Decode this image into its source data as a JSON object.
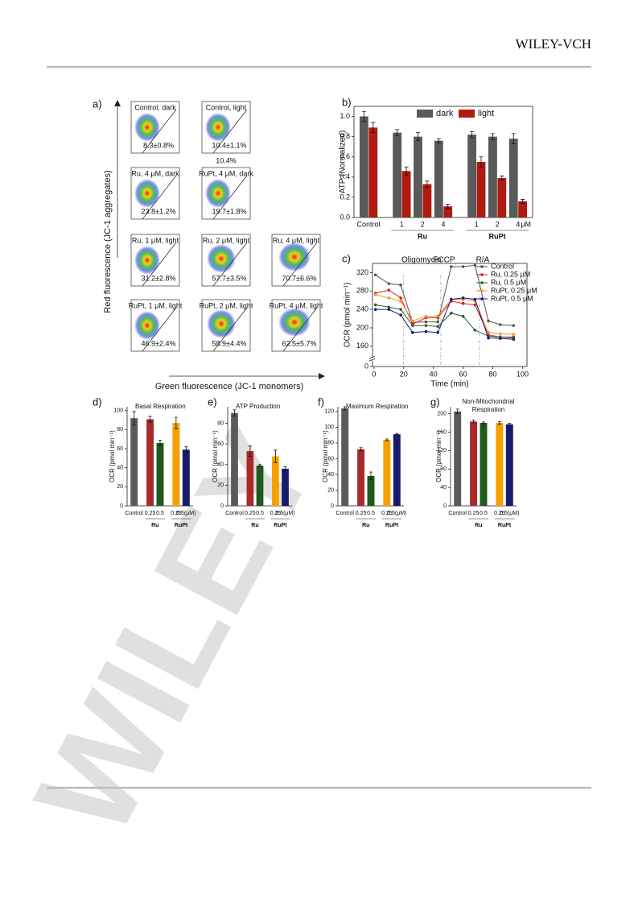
{
  "header": {
    "brand": "WILEY-VCH"
  },
  "watermark": "WILEY",
  "panel_a": {
    "label": "a)",
    "y_label": "Red fluorescence (JC-1 aggregates)",
    "x_label": "Green fluorescence (JC-1 monomers)",
    "plots": [
      {
        "title": "Control, dark",
        "gate": "8.3±0.8%"
      },
      {
        "title": "Control, light",
        "gate": "10.4±1.1%"
      },
      {
        "title": "Ru, 4 μM, dark",
        "gate": "23.8±1.2%"
      },
      {
        "title": "RuPt, 4 μM, dark",
        "gate": "19.7±1.8%"
      },
      {
        "title": "Ru, 1 μM, light",
        "gate": "31.2±2.8%"
      },
      {
        "title": "Ru, 2 μM, light",
        "gate": "57.7±3.5%"
      },
      {
        "title": "Ru, 4 μM, light",
        "gate": "70.7±6.6%"
      },
      {
        "title": "RuPt, 1 μM, light",
        "gate": "46.9±2.4%"
      },
      {
        "title": "RuPt, 2 μM, light",
        "gate": "58.9±4.4%"
      },
      {
        "title": "RuPt, 4 μM, light",
        "gate": "62.5±5.7%"
      }
    ],
    "extra": "10.4%"
  },
  "chart_data": [
    {
      "type": "bar",
      "panel": "b)",
      "y_label": "ATP (Normalized)",
      "frame": true,
      "legend": "top",
      "categories": [
        "Control",
        "1",
        "2",
        "4",
        "1",
        "2",
        "4"
      ],
      "groups": [
        "Ru",
        "RuPt"
      ],
      "unit": "μM",
      "series": [
        {
          "name": "dark",
          "color": "#5a5a5a",
          "values": [
            1.0,
            0.84,
            0.8,
            0.76,
            0.82,
            0.8,
            0.78
          ],
          "errors": [
            0.05,
            0.03,
            0.04,
            0.02,
            0.03,
            0.03,
            0.05
          ]
        },
        {
          "name": "light",
          "color": "#b01a10",
          "values": [
            0.89,
            0.46,
            0.33,
            0.11,
            0.55,
            0.39,
            0.16
          ],
          "errors": [
            0.05,
            0.04,
            0.03,
            0.02,
            0.05,
            0.02,
            0.02
          ]
        }
      ],
      "ylim": [
        0,
        1.1
      ],
      "yticks": [
        {
          "value": 0,
          "label": "0.0"
        },
        0.2,
        0.4,
        0.6,
        0.8,
        {
          "value": 1,
          "label": "1.0"
        }
      ]
    },
    {
      "type": "line",
      "panel": "c)",
      "y_label": "OCR (pmol min⁻¹)",
      "x_label": "Time (min)",
      "frame": true,
      "legend": "top-right",
      "x": [
        1,
        10,
        18,
        26,
        35,
        43,
        52,
        60,
        68,
        77,
        85,
        94
      ],
      "series": [
        {
          "name": "Control",
          "color": "#555555",
          "values": [
            315,
            296,
            293,
            212,
            213,
            213,
            333,
            333,
            336,
            215,
            207,
            205
          ]
        },
        {
          "name": "Ru, 0.25 μM",
          "color": "#d42020",
          "values": [
            275,
            282,
            265,
            208,
            222,
            222,
            258,
            253,
            250,
            185,
            180,
            180
          ]
        },
        {
          "name": "Ru, 0.5 μM",
          "color": "#2e5e2e",
          "values": [
            250,
            245,
            240,
            205,
            205,
            203,
            232,
            225,
            195,
            182,
            180,
            178
          ]
        },
        {
          "name": "RuPt, 0.25 μM",
          "color": "#f59a20",
          "values": [
            272,
            265,
            258,
            215,
            225,
            226,
            262,
            262,
            258,
            190,
            187,
            186
          ]
        },
        {
          "name": "RuPt, 0.5 μM",
          "color": "#1a1a7a",
          "values": [
            240,
            240,
            228,
            190,
            192,
            190,
            262,
            265,
            262,
            178,
            177,
            175
          ]
        }
      ],
      "annotations": [
        {
          "text": "Oligomycin",
          "x": 20
        },
        {
          "text": "FCCP",
          "x": 45
        },
        {
          "text": "R/A",
          "x": 71
        }
      ],
      "xlim": [
        -1,
        103
      ],
      "xticks": [
        0,
        20,
        40,
        60,
        80,
        100
      ],
      "ylim": [
        0,
        340
      ],
      "ybreak": [
        10,
        140
      ],
      "yticks": [
        0,
        160,
        200,
        240,
        280,
        320
      ]
    },
    {
      "type": "bar",
      "panel": "d)",
      "title": "Basal Respiration",
      "y_label": "OCR (pmol min⁻¹)",
      "categories": [
        "Control",
        "0.25",
        "0.5",
        "0.25",
        "0.5(μM)"
      ],
      "groups": [
        "Ru",
        "RuPt"
      ],
      "values": [
        92,
        91,
        66,
        87,
        59
      ],
      "errors": [
        7,
        3,
        3,
        6,
        3
      ],
      "colors": [
        "#5a5a5a",
        "#a82a2a",
        "#1e5a1e",
        "#f5a000",
        "#1a1a6a"
      ],
      "ylim": [
        0,
        104
      ],
      "yticks": [
        0,
        20,
        40,
        60,
        80,
        100
      ]
    },
    {
      "type": "bar",
      "panel": "e)",
      "title": "ATP Production",
      "y_label": "OCR (pmol min⁻¹)",
      "categories": [
        "Control",
        "0.25",
        "0.5",
        "0.25",
        "0.5(μM)"
      ],
      "groups": [
        "Ru",
        "RuPt"
      ],
      "values": [
        90,
        53,
        39,
        48,
        36
      ],
      "errors": [
        3,
        5,
        1,
        6,
        2
      ],
      "colors": [
        "#5a5a5a",
        "#a82a2a",
        "#1e5a1e",
        "#f5a000",
        "#1a1a6a"
      ],
      "ylim": [
        0,
        96
      ],
      "yticks": [
        0,
        20,
        40,
        60,
        80
      ]
    },
    {
      "type": "bar",
      "panel": "f)",
      "title": "Maximum Respiration",
      "y_label": "OCR (pmol min⁻¹)",
      "categories": [
        "Control",
        "0.25",
        "0.5",
        "0.25",
        "0.5(μM)"
      ],
      "groups": [
        "Ru",
        "RuPt"
      ],
      "values": [
        124,
        72,
        38,
        84,
        91
      ],
      "errors": [
        2,
        2,
        5,
        1,
        1
      ],
      "colors": [
        "#5a5a5a",
        "#a82a2a",
        "#1e5a1e",
        "#f5a000",
        "#1a1a6a"
      ],
      "ylim": [
        0,
        126
      ],
      "yticks": [
        0,
        20,
        40,
        60,
        80,
        100,
        120
      ]
    },
    {
      "type": "bar",
      "panel": "g)",
      "title": [
        "Non-Mitochondrial",
        "Respiration"
      ],
      "y_label": "OCR (pmol min⁻¹)",
      "categories": [
        "Control",
        "0.25",
        "0.5",
        "0.25",
        "0.5(μM)"
      ],
      "groups": [
        "Ru",
        "RuPt"
      ],
      "values": [
        205,
        183,
        180,
        180,
        177
      ],
      "errors": [
        5,
        3,
        2,
        3,
        2
      ],
      "colors": [
        "#5a5a5a",
        "#a82a2a",
        "#1e5a1e",
        "#f5a000",
        "#1a1a6a"
      ],
      "ylim": [
        0,
        215
      ],
      "yticks": [
        0,
        40,
        80,
        120,
        160,
        200
      ]
    }
  ]
}
